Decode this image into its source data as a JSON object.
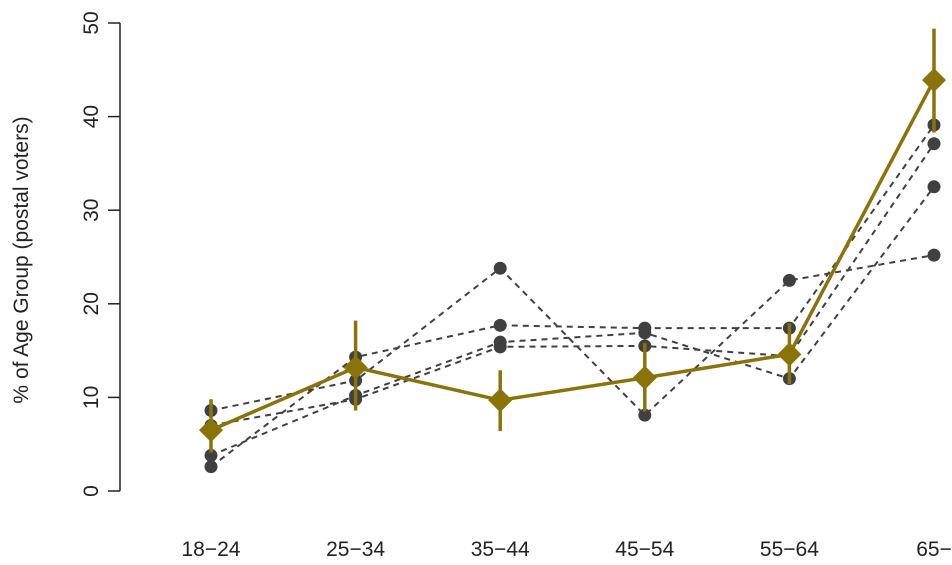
{
  "chart_data": {
    "type": "line",
    "title": "",
    "xlabel": "",
    "ylabel": "% of Age Group (postal voters)",
    "categories": [
      "18−24",
      "25−34",
      "35−44",
      "45−54",
      "55−64",
      "65−"
    ],
    "ylim": [
      0,
      50
    ],
    "yticks": [
      0,
      10,
      20,
      30,
      40,
      50
    ],
    "grid": false,
    "legend": "none",
    "colors": {
      "main": "#8a7309",
      "reference": "#404040"
    },
    "main_series": {
      "values": [
        6.5,
        13.2,
        9.7,
        12.1,
        14.6,
        43.9
      ],
      "error_low": [
        4.1,
        8.6,
        6.4,
        8.5,
        11.4,
        38.3
      ],
      "error_high": [
        9.8,
        18.2,
        12.9,
        15.8,
        17.9,
        49.4
      ]
    },
    "reference_series": [
      {
        "values": [
          8.6,
          11.8,
          23.8,
          8.1,
          22.5,
          25.2
        ]
      },
      {
        "values": [
          2.6,
          14.3,
          17.7,
          17.4,
          17.4,
          39.1
        ]
      },
      {
        "values": [
          3.8,
          10.2,
          15.9,
          16.9,
          12.0,
          32.5
        ]
      },
      {
        "values": [
          7.0,
          9.8,
          15.4,
          15.5,
          14.4,
          37.1
        ]
      }
    ]
  }
}
